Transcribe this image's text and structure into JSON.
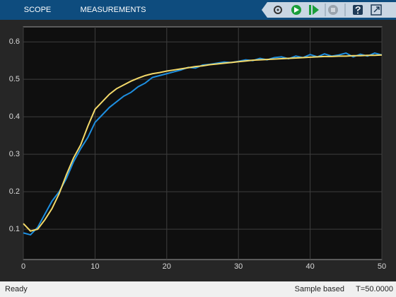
{
  "toolbar": {
    "tabs": [
      "SCOPE",
      "MEASUREMENTS"
    ]
  },
  "chart_data": {
    "type": "line",
    "x": [
      0,
      1,
      2,
      3,
      4,
      5,
      6,
      7,
      8,
      9,
      10,
      11,
      12,
      13,
      14,
      15,
      16,
      17,
      18,
      19,
      20,
      21,
      22,
      23,
      24,
      25,
      26,
      27,
      28,
      29,
      30,
      31,
      32,
      33,
      34,
      35,
      36,
      37,
      38,
      39,
      40,
      41,
      42,
      43,
      44,
      45,
      46,
      47,
      48,
      49,
      50
    ],
    "series": [
      {
        "color": "#1e8fe0",
        "values": [
          0.09,
          0.085,
          0.105,
          0.14,
          0.175,
          0.2,
          0.235,
          0.28,
          0.315,
          0.345,
          0.385,
          0.405,
          0.425,
          0.44,
          0.455,
          0.465,
          0.48,
          0.49,
          0.505,
          0.51,
          0.515,
          0.52,
          0.525,
          0.532,
          0.53,
          0.538,
          0.54,
          0.543,
          0.546,
          0.545,
          0.548,
          0.552,
          0.55,
          0.556,
          0.552,
          0.558,
          0.56,
          0.555,
          0.562,
          0.558,
          0.566,
          0.56,
          0.568,
          0.562,
          0.565,
          0.57,
          0.56,
          0.567,
          0.562,
          0.57,
          0.565
        ]
      },
      {
        "color": "#f3d96a",
        "values": [
          0.115,
          0.095,
          0.1,
          0.125,
          0.155,
          0.195,
          0.245,
          0.29,
          0.325,
          0.375,
          0.42,
          0.44,
          0.46,
          0.475,
          0.485,
          0.495,
          0.503,
          0.51,
          0.515,
          0.518,
          0.522,
          0.525,
          0.528,
          0.531,
          0.534,
          0.536,
          0.539,
          0.541,
          0.543,
          0.545,
          0.547,
          0.549,
          0.551,
          0.552,
          0.553,
          0.554,
          0.555,
          0.556,
          0.557,
          0.558,
          0.559,
          0.56,
          0.561,
          0.561,
          0.562,
          0.562,
          0.563,
          0.563,
          0.564,
          0.564,
          0.565
        ]
      }
    ],
    "xlim": [
      0,
      50
    ],
    "ylim": [
      0.019,
      0.64
    ],
    "xticks": [
      0,
      10,
      20,
      30,
      40,
      50
    ],
    "yticks": [
      0.1,
      0.2,
      0.3,
      0.4,
      0.5,
      0.6
    ],
    "grid": true
  },
  "status": {
    "left": "Ready",
    "mode": "Sample based",
    "time": "T=50.0000"
  }
}
